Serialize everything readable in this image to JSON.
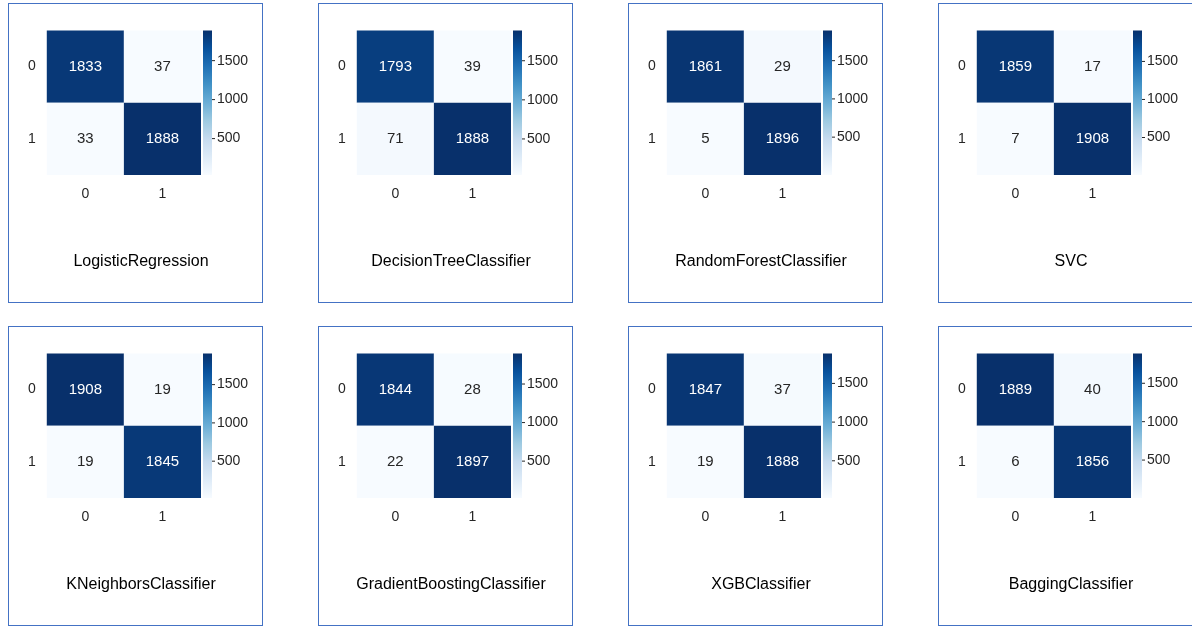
{
  "chart_data": [
    {
      "type": "heatmap",
      "title": "LogisticRegression",
      "categories": [
        "0",
        "1"
      ],
      "y_categories": [
        "0",
        "1"
      ],
      "cells": [
        [
          1833,
          37
        ],
        [
          33,
          1888
        ]
      ],
      "clim": [
        33,
        1888
      ],
      "cticks": [
        500,
        1000,
        1500
      ],
      "data_labels": true
    },
    {
      "type": "heatmap",
      "title": "DecisionTreeClassifier",
      "categories": [
        "0",
        "1"
      ],
      "y_categories": [
        "0",
        "1"
      ],
      "cells": [
        [
          1793,
          39
        ],
        [
          71,
          1888
        ]
      ],
      "clim": [
        39,
        1888
      ],
      "cticks": [
        500,
        1000,
        1500
      ],
      "data_labels": true
    },
    {
      "type": "heatmap",
      "title": "RandomForestClassifier",
      "categories": [
        "0",
        "1"
      ],
      "y_categories": [
        "0",
        "1"
      ],
      "cells": [
        [
          1861,
          29
        ],
        [
          5,
          1896
        ]
      ],
      "clim": [
        5,
        1896
      ],
      "cticks": [
        500,
        1000,
        1500
      ],
      "data_labels": true
    },
    {
      "type": "heatmap",
      "title": "SVC",
      "categories": [
        "0",
        "1"
      ],
      "y_categories": [
        "0",
        "1"
      ],
      "cells": [
        [
          1859,
          17
        ],
        [
          7,
          1908
        ]
      ],
      "clim": [
        7,
        1908
      ],
      "cticks": [
        500,
        1000,
        1500
      ],
      "data_labels": true
    },
    {
      "type": "heatmap",
      "title": "KNeighborsClassifier",
      "categories": [
        "0",
        "1"
      ],
      "y_categories": [
        "0",
        "1"
      ],
      "cells": [
        [
          1908,
          19
        ],
        [
          19,
          1845
        ]
      ],
      "clim": [
        19,
        1908
      ],
      "cticks": [
        500,
        1000,
        1500
      ],
      "data_labels": true
    },
    {
      "type": "heatmap",
      "title": "GradientBoostingClassifier",
      "categories": [
        "0",
        "1"
      ],
      "y_categories": [
        "0",
        "1"
      ],
      "cells": [
        [
          1844,
          28
        ],
        [
          22,
          1897
        ]
      ],
      "clim": [
        22,
        1897
      ],
      "cticks": [
        500,
        1000,
        1500
      ],
      "data_labels": true
    },
    {
      "type": "heatmap",
      "title": "XGBClassifier",
      "categories": [
        "0",
        "1"
      ],
      "y_categories": [
        "0",
        "1"
      ],
      "cells": [
        [
          1847,
          37
        ],
        [
          19,
          1888
        ]
      ],
      "clim": [
        19,
        1888
      ],
      "cticks": [
        500,
        1000,
        1500
      ],
      "data_labels": true
    },
    {
      "type": "heatmap",
      "title": "BaggingClassifier",
      "categories": [
        "0",
        "1"
      ],
      "y_categories": [
        "0",
        "1"
      ],
      "cells": [
        [
          1889,
          40
        ],
        [
          6,
          1856
        ]
      ],
      "clim": [
        6,
        1889
      ],
      "cticks": [
        500,
        1000,
        1500
      ],
      "data_labels": true
    }
  ]
}
